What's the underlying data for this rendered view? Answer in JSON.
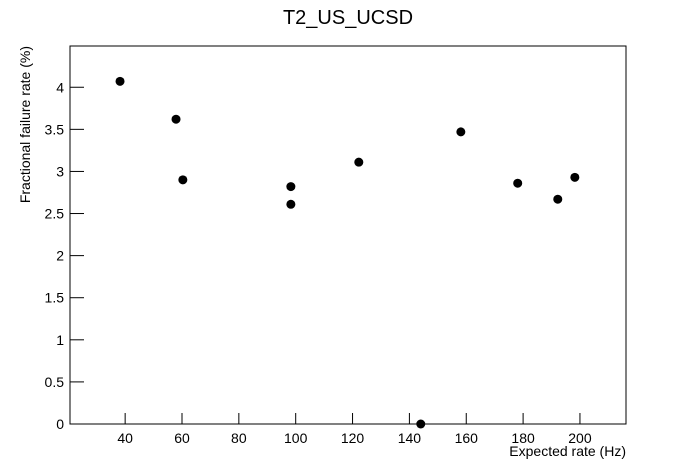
{
  "chart_data": {
    "type": "scatter",
    "title": "T2_US_UCSD",
    "x_label": "Expected rate (Hz)",
    "y_label": "Fractional failure rate (%)",
    "series": [
      {
        "name": "T2_US_UCSD",
        "color": "#000000",
        "x": [
          38.2,
          57.9,
          60.3,
          98.3,
          98.3,
          122.2,
          144.0,
          158.1,
          178.1,
          192.2,
          198.2
        ],
        "values": [
          4.07,
          3.62,
          2.9,
          2.82,
          2.61,
          3.11,
          0,
          3.47,
          2.86,
          2.67,
          2.93
        ]
      }
    ],
    "xlim": [
      20.6,
      216.2
    ],
    "xticks": [
      40,
      60,
      80,
      100,
      120,
      140,
      160,
      180,
      200
    ],
    "ylim": [
      0,
      4.49
    ],
    "yticks": [
      0,
      0.5,
      1,
      1.5,
      2,
      2.5,
      3,
      3.5,
      4
    ],
    "grid": false
  }
}
